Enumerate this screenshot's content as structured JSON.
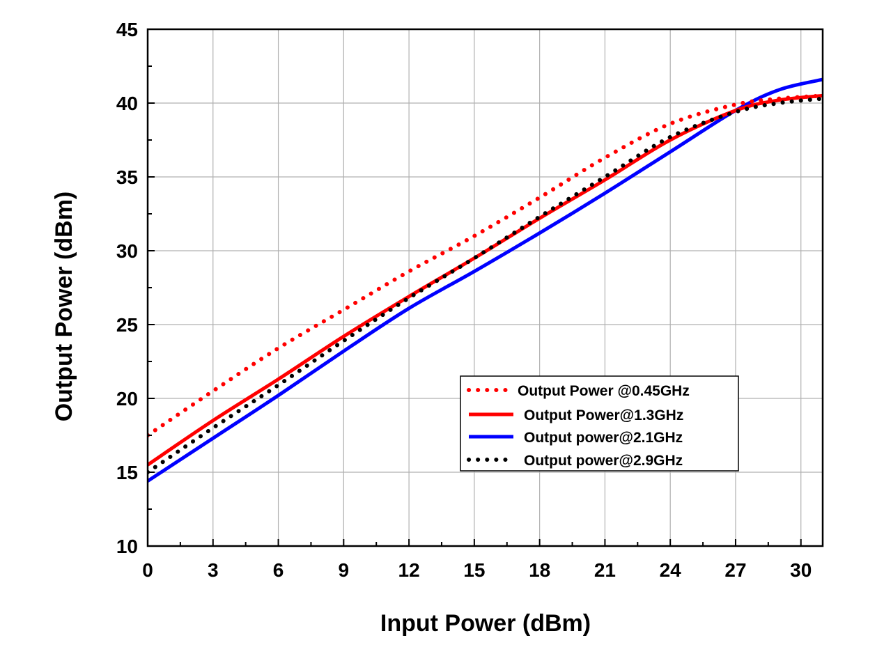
{
  "chart_data": {
    "type": "line",
    "title": "",
    "xlabel": "Input Power (dBm)",
    "ylabel": "Output Power (dBm)",
    "xlim": [
      0,
      31
    ],
    "ylim": [
      10,
      45
    ],
    "x_ticks": [
      0,
      3,
      6,
      9,
      12,
      15,
      18,
      21,
      24,
      27,
      30
    ],
    "x_tick_labels": [
      "0",
      "3",
      "6",
      "9",
      "12",
      "15",
      "18",
      "21",
      "24",
      "27",
      "30"
    ],
    "y_ticks": [
      10,
      15,
      20,
      25,
      30,
      35,
      40,
      45
    ],
    "y_tick_labels": [
      "10",
      "15",
      "20",
      "25",
      "30",
      "35",
      "40",
      "45"
    ],
    "grid": true,
    "legend_position": "lower-right",
    "series": [
      {
        "name": "Output Power @0.45GHz",
        "color": "#ff0000",
        "style": "dotted",
        "x": [
          0,
          3,
          6,
          9,
          12,
          15,
          18,
          21,
          24,
          27,
          29,
          31
        ],
        "y": [
          17.5,
          20.5,
          23.4,
          26.0,
          28.6,
          31.0,
          33.6,
          36.3,
          38.6,
          39.9,
          40.3,
          40.5
        ]
      },
      {
        "name": "Output Power@1.3GHz",
        "color": "#ff0000",
        "style": "solid",
        "x": [
          0,
          3,
          6,
          9,
          12,
          15,
          18,
          21,
          24,
          27,
          29,
          31
        ],
        "y": [
          15.5,
          18.5,
          21.3,
          24.2,
          26.9,
          29.5,
          32.2,
          34.8,
          37.5,
          39.5,
          40.2,
          40.5
        ]
      },
      {
        "name": "Output power@2.1GHz",
        "color": "#0000ff",
        "style": "solid",
        "x": [
          0,
          3,
          6,
          9,
          12,
          15,
          18,
          21,
          24,
          27,
          29,
          31
        ],
        "y": [
          14.4,
          17.3,
          20.2,
          23.2,
          26.1,
          28.6,
          31.2,
          33.9,
          36.7,
          39.5,
          40.9,
          41.6
        ]
      },
      {
        "name": "Output power@2.9GHz",
        "color": "#000000",
        "style": "dotted",
        "x": [
          0,
          3,
          6,
          9,
          12,
          15,
          18,
          21,
          24,
          27,
          29,
          31
        ],
        "y": [
          15.0,
          18.0,
          20.9,
          23.9,
          26.8,
          29.5,
          32.3,
          35.0,
          37.7,
          39.4,
          40.0,
          40.3
        ]
      }
    ]
  }
}
